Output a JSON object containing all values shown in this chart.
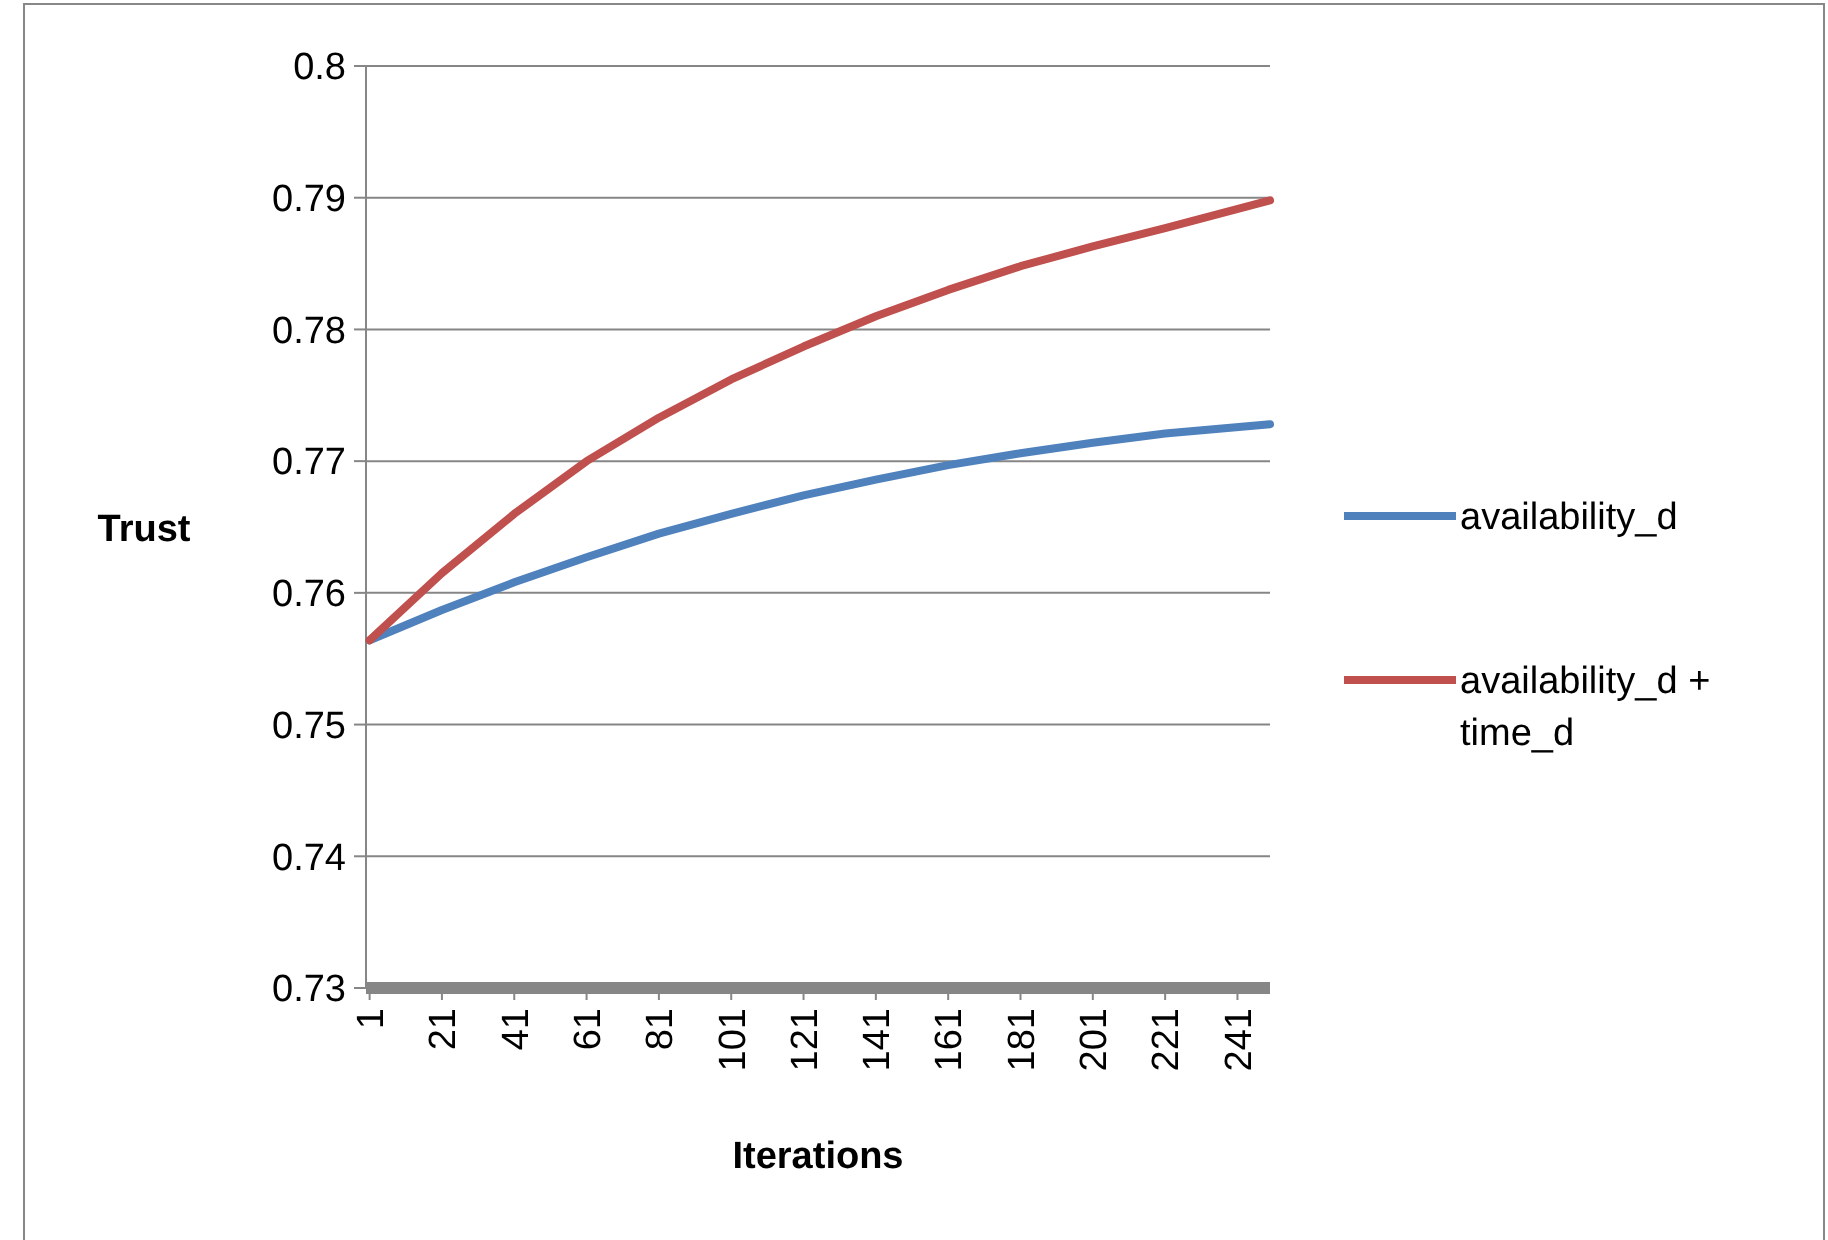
{
  "chart_data": {
    "type": "line",
    "xlabel": "Iterations",
    "ylabel": "Trust",
    "x": [
      1,
      21,
      41,
      61,
      81,
      101,
      121,
      141,
      161,
      181,
      201,
      221,
      250
    ],
    "xlim": [
      0,
      250
    ],
    "xticks": [
      1,
      21,
      41,
      61,
      81,
      101,
      121,
      141,
      161,
      181,
      201,
      221,
      241
    ],
    "ylim": [
      0.73,
      0.8
    ],
    "yticks": [
      0.73,
      0.74,
      0.75,
      0.76,
      0.77,
      0.78,
      0.79,
      0.8
    ],
    "grid": "y",
    "legend": "right",
    "marker": "none",
    "line_style": "solid",
    "series": [
      {
        "name": "availability_d",
        "color": "#4f81bd",
        "values": [
          0.7564,
          0.7587,
          0.7608,
          0.7627,
          0.7645,
          0.766,
          0.7674,
          0.7686,
          0.7697,
          0.7706,
          0.7714,
          0.7721,
          0.7728
        ]
      },
      {
        "name": "availability_d + time_d",
        "color": "#c0504d",
        "values": [
          0.7564,
          0.7615,
          0.766,
          0.77,
          0.7733,
          0.7762,
          0.7787,
          0.781,
          0.783,
          0.7848,
          0.7863,
          0.7877,
          0.7898
        ]
      }
    ]
  }
}
